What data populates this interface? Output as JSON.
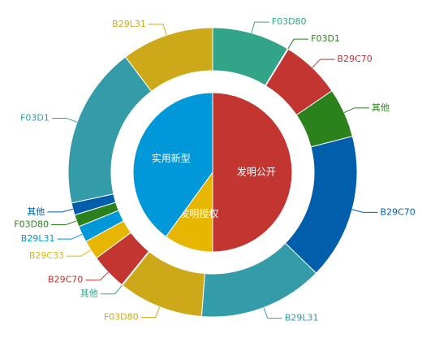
{
  "chart_data": {
    "type": "pie",
    "inner_ring": [
      {
        "label": "发明公开",
        "value": 50,
        "color": "#c23531"
      },
      {
        "label": "发明授权",
        "value": 10,
        "color": "#e6b600"
      },
      {
        "label": "实用新型",
        "value": 40,
        "color": "#0098d9"
      }
    ],
    "outer_ring": [
      {
        "label": "F03D80",
        "value": 9.6,
        "color": "#32a487"
      },
      {
        "label": "F03D1",
        "value": 0.1,
        "color": "#2b821d"
      },
      {
        "label": "B29C70",
        "value": 7.4,
        "color": "#c23531"
      },
      {
        "label": "其他",
        "value": 6.1,
        "color": "#2b821d"
      },
      {
        "label": "B29C70",
        "value": 18.0,
        "color": "#005eaa"
      },
      {
        "label": "B29L31",
        "value": 15.4,
        "color": "#339ca8"
      },
      {
        "label": "F03D80",
        "value": 10.5,
        "color": "#cda819"
      },
      {
        "label": "其他",
        "value": 0.1,
        "color": "#32a487"
      },
      {
        "label": "B29C70",
        "value": 4.5,
        "color": "#c23531"
      },
      {
        "label": "B29C33",
        "value": 2.4,
        "color": "#e6b600"
      },
      {
        "label": "B29L31",
        "value": 2.0,
        "color": "#0098d9"
      },
      {
        "label": "F03D80",
        "value": 1.5,
        "color": "#2b821d"
      },
      {
        "label": "其他",
        "value": 1.5,
        "color": "#005eaa"
      },
      {
        "label": "F03D1",
        "value": 20.0,
        "color": "#339ca8"
      },
      {
        "label": "B29L31",
        "value": 11.4,
        "color": "#cda819"
      }
    ]
  }
}
